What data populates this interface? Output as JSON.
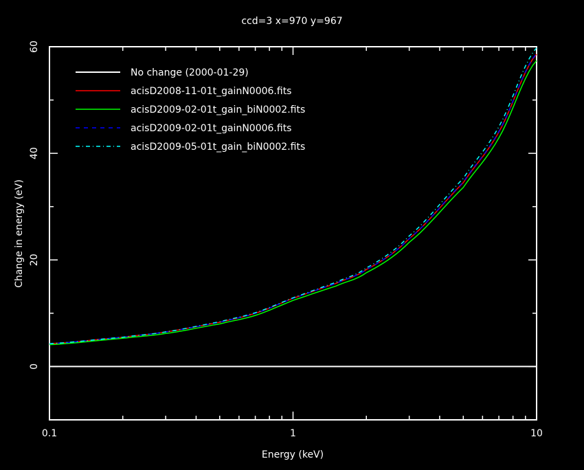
{
  "chart_data": {
    "type": "line",
    "title": "ccd=3 x=970 y=967",
    "xlabel": "Energy (keV)",
    "ylabel": "Change in energy (eV)",
    "xscale": "log",
    "xlim": [
      0.1,
      10
    ],
    "ylim": [
      -10,
      60
    ],
    "xticks": [
      {
        "v": 0.1,
        "label": "0.1"
      },
      {
        "v": 1,
        "label": "1"
      },
      {
        "v": 10,
        "label": "10"
      }
    ],
    "yticks": [
      {
        "v": 0,
        "label": "0"
      },
      {
        "v": 20,
        "label": "20"
      },
      {
        "v": 40,
        "label": "40"
      },
      {
        "v": 60,
        "label": "60"
      }
    ],
    "legend_position": "top-left",
    "x": [
      0.1,
      0.2,
      0.3,
      0.5,
      0.7,
      1,
      1.5,
      2,
      3,
      5,
      7,
      10
    ],
    "series": [
      {
        "name": "No change (2000-01-29)",
        "color": "#ffffff",
        "dash": "",
        "values": [
          0,
          0,
          0,
          0,
          0,
          0,
          0,
          0,
          0,
          0,
          0,
          0
        ]
      },
      {
        "name": "acisD2008-11-01t_gainN0006.fits",
        "color": "#ff0000",
        "dash": "",
        "values": [
          4.3,
          5.5,
          6.5,
          8.3,
          10.0,
          12.8,
          15.6,
          18.2,
          24.0,
          34.5,
          44.0,
          58.6
        ]
      },
      {
        "name": "acisD2009-02-01t_gain_biN0002.fits",
        "color": "#00ff00",
        "dash": "",
        "values": [
          4.1,
          5.3,
          6.2,
          8.0,
          9.6,
          12.4,
          15.1,
          17.6,
          23.3,
          33.6,
          42.9,
          57.4
        ]
      },
      {
        "name": "acisD2009-02-01t_gainN0006.fits",
        "color": "#0000ff",
        "dash": "6,6",
        "values": [
          4.3,
          5.5,
          6.5,
          8.3,
          10.0,
          12.8,
          15.6,
          18.2,
          24.0,
          34.6,
          44.1,
          58.7
        ]
      },
      {
        "name": "acisD2009-05-01t_gain_biN0002.fits",
        "color": "#00ffff",
        "dash": "6,4,1,4",
        "values": [
          4.3,
          5.5,
          6.5,
          8.4,
          10.1,
          12.9,
          15.8,
          18.5,
          24.5,
          35.3,
          45.0,
          59.8
        ]
      }
    ]
  }
}
